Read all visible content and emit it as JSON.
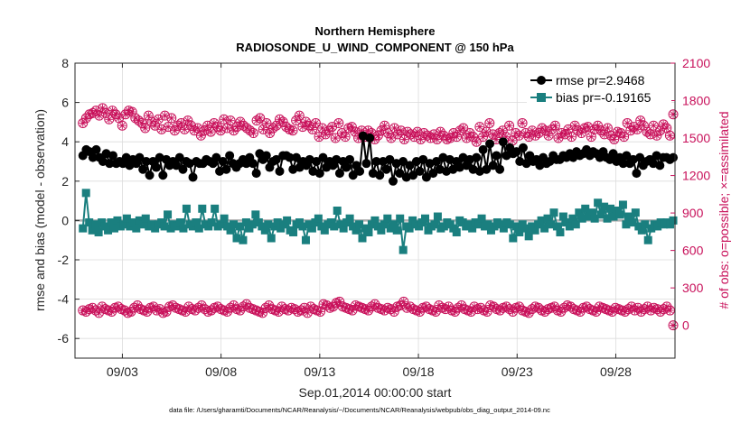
{
  "chart_data": {
    "type": "line",
    "title_line1": "Northern Hemisphere",
    "title_line2": "RADIOSONDE_U_WIND_COMPONENT @ 150 hPa",
    "xlabel": "Sep.01,2014 00:00:00 start",
    "ylabel_left": "rmse and bias (model - observation)",
    "ylabel_right": "# of obs: o=possible; ×=assimilated",
    "footer": "data file: /Users/gharamti/Documents/NCAR/Reanalysis/~/Documents/NCAR/Reanalysis/webpub/obs_diag_output_2014-09.nc",
    "x_range": [
      0.6,
      31.0
    ],
    "left_ylim": [
      -7,
      8
    ],
    "right_ylim": [
      -262.5,
      2100
    ],
    "x_ticks": [
      3,
      8,
      13,
      18,
      23,
      28
    ],
    "x_tick_labels": [
      "09/03",
      "09/08",
      "09/13",
      "09/18",
      "09/23",
      "09/28"
    ],
    "left_ticks": [
      8,
      6,
      4,
      2,
      0,
      -2,
      -4,
      -6
    ],
    "right_ticks": [
      2100,
      1800,
      1500,
      1200,
      900,
      600,
      300,
      0
    ],
    "legend": {
      "position": "top-right",
      "entries": [
        {
          "label": "rmse pr=2.9468",
          "color": "#000000",
          "marker": "circle"
        },
        {
          "label": "bias pr=-0.19165",
          "color": "#1a7f7f",
          "marker": "square"
        }
      ]
    },
    "colors": {
      "rmse": "#000000",
      "bias": "#1a7f7f",
      "obs": "#c8105a",
      "zero_line": "#b0b0b0"
    },
    "series": [
      {
        "name": "rmse",
        "axis": "left",
        "values": [
          3.3,
          3.6,
          3.5,
          3.2,
          3.6,
          3.2,
          3.0,
          3.4,
          2.9,
          3.3,
          2.9,
          3.0,
          2.9,
          3.2,
          2.8,
          3.1,
          2.9,
          3.2,
          2.6,
          3.0,
          2.3,
          3.0,
          2.7,
          3.2,
          2.3,
          3.1,
          2.8,
          3.0,
          2.8,
          3.2,
          2.6,
          3.0,
          2.9,
          2.2,
          3.0,
          2.9,
          2.9,
          3.1,
          3.0,
          2.9,
          3.2,
          2.5,
          3.0,
          2.6,
          3.3,
          2.9,
          2.7,
          2.9,
          3.1,
          2.9,
          3.2,
          2.9,
          2.4,
          3.4,
          3.1,
          3.3,
          2.7,
          3.0,
          3.1,
          2.5,
          3.3,
          3.3,
          3.2,
          2.6,
          3.2,
          2.7,
          3.0,
          2.8,
          3.1,
          2.5,
          3.0,
          2.4,
          3.2,
          2.7,
          3.0,
          2.8,
          3.1,
          2.4,
          3.0,
          2.7,
          3.1,
          2.3,
          2.8,
          2.5,
          4.3,
          2.9,
          4.2,
          2.4,
          3.0,
          2.3,
          3.0,
          2.6,
          3.1,
          2.0,
          2.9,
          2.4,
          3.0,
          2.2,
          2.8,
          2.3,
          3.0,
          2.5,
          3.1,
          2.2,
          2.9,
          2.4,
          3.0,
          2.6,
          3.2,
          2.5,
          3.1,
          2.6,
          3.0,
          2.7,
          3.2,
          2.8,
          3.1,
          2.6,
          3.2,
          2.5,
          3.6,
          2.6,
          3.9,
          2.8,
          3.3,
          2.6,
          4.0,
          3.3,
          3.7,
          3.4,
          3.5,
          3.0,
          3.7,
          2.9,
          3.3,
          3.0,
          3.1,
          2.8,
          3.2,
          2.9,
          3.0,
          3.3,
          3.1,
          3.1,
          3.3,
          3.2,
          3.4,
          3.2,
          3.5,
          3.3,
          3.4,
          3.6,
          3.3,
          3.5,
          3.4,
          3.2,
          3.5,
          3.2,
          3.1,
          3.4,
          3.0,
          3.2,
          2.9,
          3.3,
          2.9,
          3.1,
          2.4,
          3.2,
          2.8,
          3.0,
          3.1,
          2.9,
          3.3,
          2.8,
          3.2,
          3.2,
          3.1,
          3.2
        ]
      },
      {
        "name": "bias",
        "axis": "left",
        "values": [
          -0.4,
          1.4,
          -0.1,
          -0.5,
          -0.2,
          -0.6,
          -0.1,
          -0.3,
          -0.5,
          -0.1,
          -0.4,
          0.0,
          -0.3,
          -0.2,
          0.1,
          -0.3,
          -0.1,
          -0.4,
          0.0,
          -0.2,
          0.1,
          -0.3,
          -0.2,
          -0.4,
          -0.2,
          -0.1,
          -0.3,
          0.3,
          -0.4,
          -0.2,
          -0.3,
          -0.1,
          -0.4,
          0.6,
          -0.2,
          -0.3,
          -0.1,
          -0.4,
          0.6,
          -0.2,
          -0.3,
          -0.1,
          0.6,
          -0.3,
          -0.2,
          0.1,
          -0.3,
          -0.5,
          -0.2,
          -0.9,
          -0.3,
          -1.0,
          -0.1,
          -0.4,
          -0.2,
          0.3,
          -0.1,
          -0.3,
          -0.5,
          -0.2,
          -0.9,
          -0.3,
          -0.1,
          -0.4,
          -0.2,
          0.0,
          -0.5,
          -0.6,
          -0.2,
          -0.1,
          -0.3,
          -1.0,
          -0.2,
          -0.4,
          -0.1,
          0.1,
          -0.3,
          -0.5,
          -0.2,
          -0.1,
          -0.3,
          0.5,
          -0.2,
          -0.4,
          -0.1,
          0.1,
          -0.3,
          -0.5,
          -0.2,
          -0.9,
          -0.4,
          -0.6,
          -0.2,
          0.0,
          -0.3,
          -0.5,
          -0.2,
          0.1,
          -0.4,
          -0.2,
          -0.5,
          0.1,
          -1.5,
          -0.3,
          -0.4,
          0.0,
          -0.2,
          -0.3,
          -0.1,
          0.1,
          -0.5,
          -0.3,
          -0.2,
          0.2,
          -0.4,
          -0.3,
          -0.1,
          -0.2,
          -0.4,
          -0.6,
          0.0,
          -0.1,
          -0.3,
          -0.2,
          -0.4,
          -0.1,
          -0.2,
          0.1,
          -0.3,
          -0.2,
          -0.5,
          -0.3,
          -0.1,
          -0.2,
          -0.4,
          -0.1,
          -0.2,
          -0.9,
          -0.3,
          -0.6,
          -0.2,
          -0.4,
          -0.8,
          -0.3,
          -0.5,
          -0.2,
          0.0,
          -0.4,
          0.1,
          -0.2,
          0.4,
          -0.3,
          -0.6,
          0.2,
          -0.1,
          -0.3,
          0.1,
          -0.2,
          0.4,
          0.1,
          0.6,
          0.2,
          0.4,
          0.1,
          0.9,
          0.3,
          0.7,
          0.1,
          0.6,
          0.2,
          0.5,
          0.3,
          0.8,
          -0.2,
          0.2,
          -0.1,
          0.4,
          -0.3,
          -0.5,
          -0.2,
          -1.0,
          -0.4,
          -0.2,
          -0.3,
          -0.1,
          -0.2,
          -0.1,
          -0.2,
          0.0
        ]
      },
      {
        "name": "obs_possible_upper",
        "axis": "right",
        "values": [
          1620,
          1660,
          1690,
          1700,
          1720,
          1680,
          1740,
          1700,
          1650,
          1720,
          1690,
          1660,
          1600,
          1690,
          1720,
          1710,
          1660,
          1640,
          1620,
          1580,
          1680,
          1630,
          1600,
          1650,
          1570,
          1680,
          1590,
          1660,
          1560,
          1600,
          1620,
          1570,
          1640,
          1600,
          1560,
          1580,
          1520,
          1560,
          1600,
          1550,
          1620,
          1590,
          1560,
          1650,
          1580,
          1640,
          1560,
          1590,
          1630,
          1600,
          1580,
          1560,
          1540,
          1640,
          1660,
          1570,
          1620,
          1540,
          1580,
          1600,
          1650,
          1630,
          1590,
          1570,
          1560,
          1640,
          1680,
          1590,
          1630,
          1600,
          1570,
          1620,
          1510,
          1580,
          1530,
          1560,
          1590,
          1500,
          1620,
          1540,
          1510,
          1580,
          1590,
          1550,
          1500,
          1560,
          1510,
          1560,
          1540,
          1490,
          1520,
          1560,
          1600,
          1540,
          1500,
          1580,
          1530,
          1560,
          1490,
          1550,
          1530,
          1510,
          1550,
          1490,
          1540,
          1520,
          1500,
          1530,
          1490,
          1550,
          1520,
          1490,
          1500,
          1540,
          1510,
          1560,
          1580,
          1500,
          1540,
          1510,
          1470,
          1590,
          1510,
          1550,
          1620,
          1530,
          1490,
          1540,
          1560,
          1510,
          1600,
          1480,
          1540,
          1520,
          1620,
          1540,
          1510,
          1560,
          1520,
          1540,
          1580,
          1560,
          1520,
          1570,
          1600,
          1500,
          1540,
          1530,
          1570,
          1510,
          1600,
          1560,
          1540,
          1580,
          1590,
          1510,
          1570,
          1600,
          1560,
          1530,
          1580,
          1520,
          1490,
          1550,
          1540,
          1510,
          1620,
          1560,
          1590,
          1570,
          1640,
          1600,
          1550,
          1530,
          1600,
          1520,
          1560,
          1610,
          1580,
          1520,
          1690
        ]
      },
      {
        "name": "obs_possible_lower",
        "axis": "right",
        "values": [
          120,
          110,
          130,
          140,
          120,
          100,
          150,
          130,
          120,
          110,
          140,
          150,
          130,
          120,
          100,
          110,
          140,
          160,
          130,
          120,
          110,
          140,
          150,
          120,
          130,
          100,
          110,
          150,
          160,
          140,
          130,
          120,
          110,
          150,
          130,
          120,
          140,
          160,
          130,
          110,
          120,
          140,
          150,
          130,
          120,
          110,
          140,
          160,
          130,
          120,
          150,
          170,
          140,
          130,
          120,
          110,
          100,
          140,
          160,
          130,
          120,
          110,
          150,
          130,
          120,
          140,
          130,
          110,
          120,
          140,
          100,
          150,
          130,
          120,
          110,
          170,
          160,
          140,
          150,
          180,
          190,
          150,
          140,
          130,
          120,
          160,
          150,
          140,
          130,
          120,
          150,
          170,
          140,
          130,
          120,
          140,
          130,
          110,
          150,
          160,
          190,
          140,
          150,
          130,
          120,
          110,
          140,
          150,
          130,
          120,
          110,
          160,
          140,
          130,
          150,
          120,
          110,
          140,
          160,
          130,
          120,
          110,
          150,
          130,
          140,
          120,
          110,
          160,
          150,
          130,
          120,
          140,
          150,
          130,
          110,
          140,
          150,
          120,
          110,
          100,
          130,
          150,
          140,
          120,
          110,
          130,
          140,
          150,
          120,
          110,
          140,
          160,
          150,
          130,
          120,
          110,
          140,
          150,
          130,
          120,
          110,
          150,
          140,
          130,
          120,
          110,
          140,
          130,
          120,
          110,
          130,
          150,
          120,
          140,
          110,
          130,
          150,
          120,
          140,
          130,
          110,
          130,
          150,
          120,
          0
        ]
      }
    ]
  }
}
